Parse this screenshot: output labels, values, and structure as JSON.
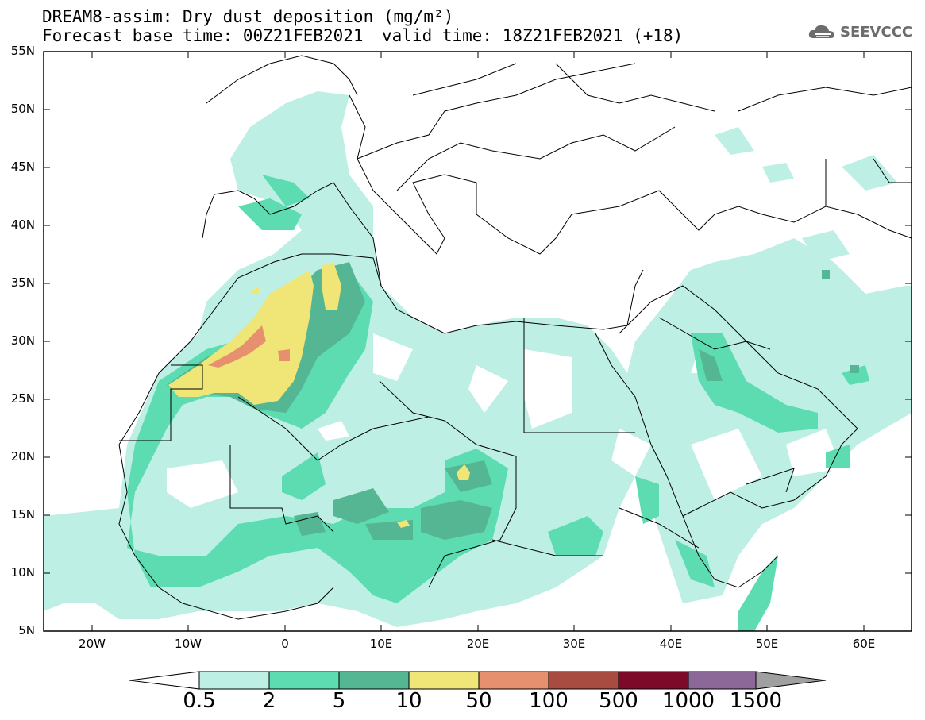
{
  "title": {
    "line1": "DREAM8-assim: Dry dust deposition (mg/m²)",
    "line2": "Forecast base time: 00Z21FEB2021",
    "valid": "valid time: 18Z21FEB2021 (+18)"
  },
  "logo": {
    "text": "SEEVCCC",
    "icon": "cloud-icon"
  },
  "axes": {
    "lat_ticks": [
      "55N",
      "50N",
      "45N",
      "40N",
      "35N",
      "30N",
      "25N",
      "20N",
      "15N",
      "10N",
      "5N"
    ],
    "lon_ticks": [
      "20W",
      "10W",
      "0",
      "10E",
      "20E",
      "30E",
      "40E",
      "50E",
      "60E"
    ],
    "lon_range": [
      -25,
      65
    ],
    "lat_range": [
      5,
      55
    ]
  },
  "colorbar": {
    "labels": [
      "0.5",
      "2",
      "5",
      "10",
      "50",
      "100",
      "500",
      "1000",
      "1500"
    ],
    "colors": [
      "#bdefe5",
      "#5ddcb2",
      "#55b693",
      "#f0e678",
      "#e69070",
      "#a84c42",
      "#7e0a2a",
      "#8c6898"
    ],
    "over_color": "#a0a0a0",
    "under_color": "#ffffff"
  },
  "legend_colors": {
    "level_0_5": "#bdefe5",
    "level_2": "#5ddcb2",
    "level_5": "#55b693",
    "level_10": "#f0e678",
    "level_50": "#e69070"
  }
}
